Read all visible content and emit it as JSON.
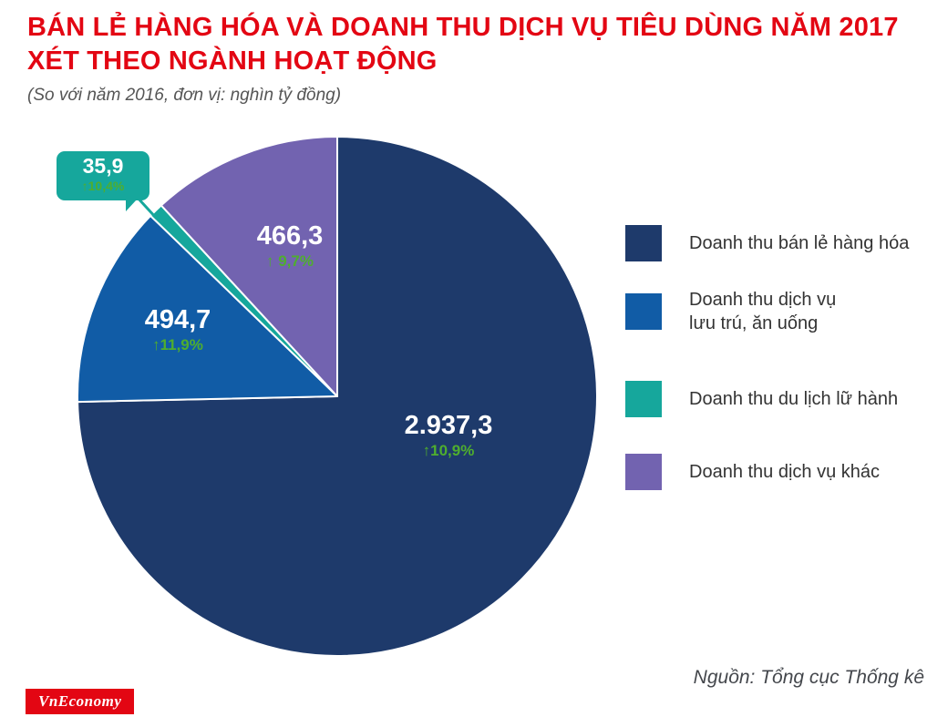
{
  "title": {
    "line1": "BÁN LẺ HÀNG HÓA VÀ DOANH THU DỊCH VỤ TIÊU DÙNG NĂM 2017",
    "line2": "XÉT THEO NGÀNH HOẠT ĐỘNG",
    "subtitle": "(So với năm 2016, đơn vị: nghìn tỷ đồng)"
  },
  "chart_data": {
    "type": "pie",
    "title": "BÁN LẺ HÀNG HÓA VÀ DOANH THU DỊCH VỤ TIÊU DÙNG NĂM 2017 XÉT THEO NGÀNH HOẠT ĐỘNG",
    "subtitle": "(So với năm 2016, đơn vị: nghìn tỷ đồng)",
    "unit": "nghìn tỷ đồng",
    "start_angle_deg": 0,
    "direction": "clockwise",
    "legend_position": "right",
    "series": [
      {
        "name": "Doanh thu bán lẻ hàng hóa",
        "value": 2937.3,
        "value_label": "2.937,3",
        "growth_label": "↑10,9%",
        "color": "#1e3a6b"
      },
      {
        "name": "Doanh thu dịch vụ lưu trú, ăn uống",
        "value": 494.7,
        "value_label": "494,7",
        "growth_label": "↑11,9%",
        "color": "#115ca6"
      },
      {
        "name": "Doanh thu du lịch lữ hành",
        "value": 35.9,
        "value_label": "35,9",
        "growth_label": "↑10,4%",
        "color": "#16a79c"
      },
      {
        "name": "Doanh thu dịch vụ khác",
        "value": 466.3,
        "value_label": "466,3",
        "growth_label": "↑ 9,7%",
        "color": "#7263b0"
      }
    ]
  },
  "legend": {
    "items": [
      {
        "line1": "Doanh thu bán lẻ hàng hóa",
        "line2": ""
      },
      {
        "line1": "Doanh thu dịch vụ",
        "line2": "lưu trú, ăn uống"
      },
      {
        "line1": "Doanh thu du lịch lữ hành",
        "line2": ""
      },
      {
        "line1": "Doanh thu dịch vụ khác",
        "line2": ""
      }
    ]
  },
  "footer": {
    "source": "Nguồn: Tổng cục Thống kê",
    "logo": "VnEconomy"
  },
  "colors": {
    "title_red": "#e30613",
    "growth_green": "#4fae2e",
    "navy": "#1e3a6b",
    "blue": "#115ca6",
    "teal": "#16a79c",
    "purple": "#7263b0"
  }
}
